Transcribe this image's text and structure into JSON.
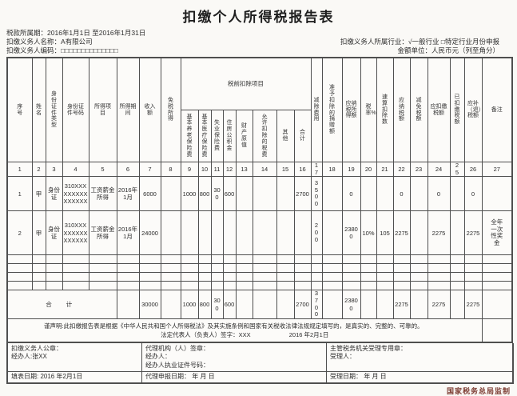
{
  "title": "扣缴个人所得税报告表",
  "header": {
    "period_label": "税款所属期：",
    "period_value": "2016年1月1日 至2016年1月31日",
    "name_label": "扣缴义务人名称：",
    "name_value": "A有限公司",
    "code_label": "扣缴义务人编码：",
    "code_value": "□□□□□□□□□□□□□□",
    "industry": "扣缴义务人所属行业：√一般行业 □特定行业月份申报",
    "unit": "金额单位：人民币元（列至角分）"
  },
  "table": {
    "group_header": "税前扣除项目",
    "columns": [
      "序号",
      "姓名",
      "身份证件类型",
      "身份证件号码",
      "所得项目",
      "所得期间",
      "收入额",
      "免税所得",
      "基本养老保险费",
      "基本医疗保险费",
      "失业保险费",
      "住房公积金",
      "财产原值",
      "允许扣除的税费",
      "其他",
      "合计",
      "减除费用",
      "准予扣除的捐赠额",
      "应纳税所得额",
      "税率%",
      "速算扣除数",
      "应纳税额",
      "减免税额",
      "应扣缴税额",
      "已扣缴税额",
      "应补（退）税额",
      "备注"
    ],
    "col_numbers": [
      "1",
      "2",
      "3",
      "4",
      "5",
      "6",
      "7",
      "8",
      "9",
      "10",
      "11",
      "12",
      "13",
      "14",
      "15",
      "16",
      "17",
      "18",
      "19",
      "20",
      "21",
      "22",
      "23",
      "24",
      "25",
      "26",
      "27"
    ],
    "rows": [
      [
        "1",
        "甲",
        "身份证",
        "310XXXXXXXXXXXXXXX",
        "工资薪金所得",
        "2016年1月",
        "6000",
        "",
        "1000",
        "800",
        "300",
        "600",
        "",
        "",
        "",
        "2700",
        "3500",
        "",
        "0",
        "",
        "",
        "0",
        "",
        "0",
        "",
        "0",
        ""
      ],
      [
        "2",
        "甲",
        "身份证",
        "310XXXXXXXXXXXXXXX",
        "工资薪金所得",
        "2016年1月",
        "24000",
        "",
        "",
        "",
        "",
        "",
        "",
        "",
        "",
        "",
        "200",
        "",
        "23800",
        "10%",
        "105",
        "2275",
        "",
        "2275",
        "",
        "2275",
        "全年一次性奖金"
      ]
    ],
    "empty_row_count": 4,
    "total": {
      "label": "合  计",
      "cells": [
        "",
        "30000",
        "",
        "1000",
        "800",
        "300",
        "600",
        "",
        "",
        "",
        "2700",
        "3700",
        "",
        "23800",
        "",
        "",
        "2275",
        "",
        "2275",
        "",
        "2275",
        ""
      ]
    }
  },
  "declaration": {
    "statement": "谨声明:此扣缴报告表是根据《中华人民共和国个人所得税法》及其实施条例和国家有关税收法律法规规定填写的，是真实的、完整的、可靠的。",
    "sign_label": "法定代表人（负责人）签字：XXX",
    "sign_date": "2016 年2月1日"
  },
  "footer": {
    "box1": {
      "line1": "扣缴义务人公章：",
      "line2": "经办人:张XX",
      "date": "填表日期: 2016 年2月1日"
    },
    "box2": {
      "line1": "代理机构（人）签章：",
      "line2": "经办人：",
      "line3": "经办人执业证件号码：",
      "date": "代理申报日期：  年  月  日"
    },
    "box3": {
      "line1": "主管税务机关受理专用章：",
      "line2": "受理人：",
      "date": "受理日期：  年  月  日"
    },
    "stamp": "国家税务总局监制"
  }
}
